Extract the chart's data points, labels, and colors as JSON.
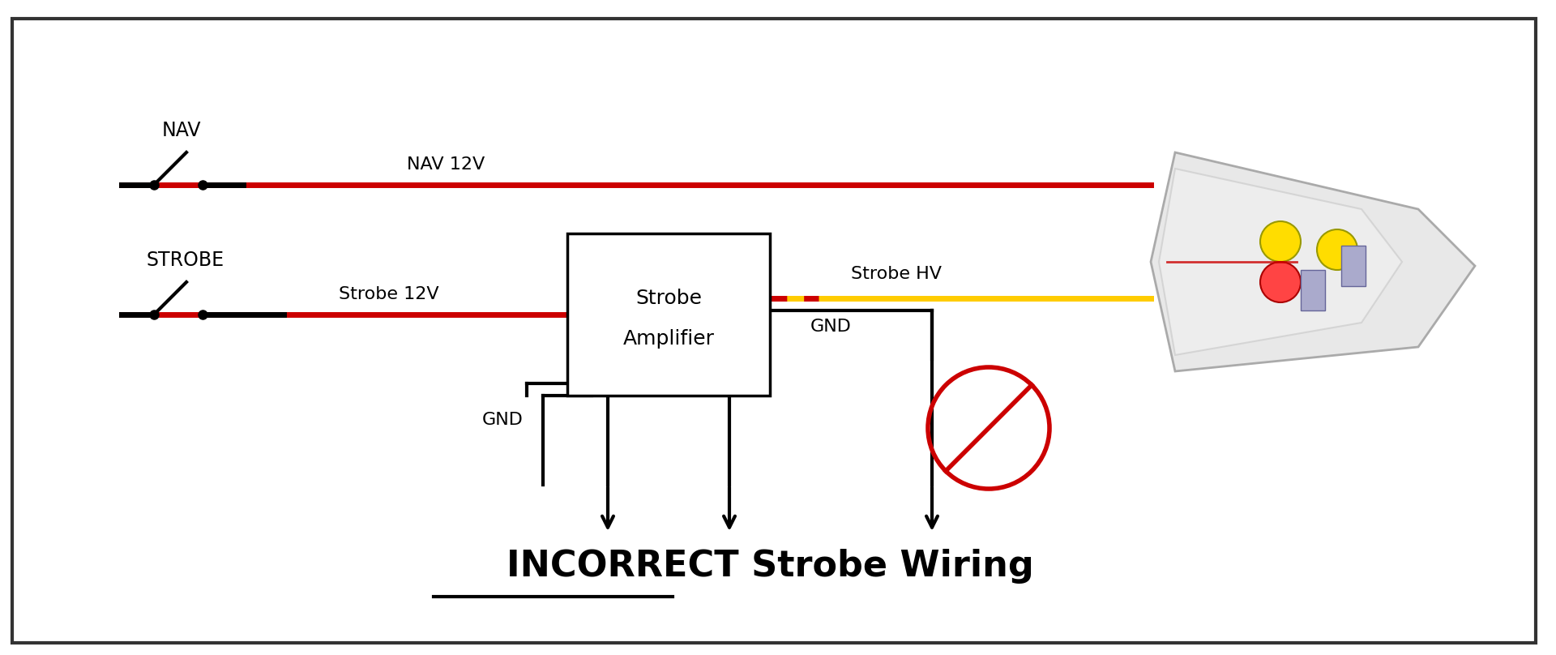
{
  "title": "INCORRECT Strobe Wiring",
  "title_underline_word": "INCORRECT",
  "bg_color": "#ffffff",
  "border_color": "#333333",
  "nav_label": "NAV",
  "strobe_label": "STROBE",
  "nav_12v_label": "NAV 12V",
  "strobe_12v_label": "Strobe 12V",
  "strobe_hv_label": "Strobe HV",
  "gnd_label_left": "GND",
  "gnd_label_right": "GND",
  "amp_label_line1": "Strobe",
  "amp_label_line2": "Amplifier",
  "nav_wire_color": "#cc0000",
  "strobe_wire_color": "#cc0000",
  "strobe_hv_color": "#ffcc00",
  "gnd_wire_color": "#000000",
  "no_symbol_color": "#cc0000",
  "switch_color": "#000000",
  "amp_box_color": "#000000",
  "arrow_color": "#000000"
}
